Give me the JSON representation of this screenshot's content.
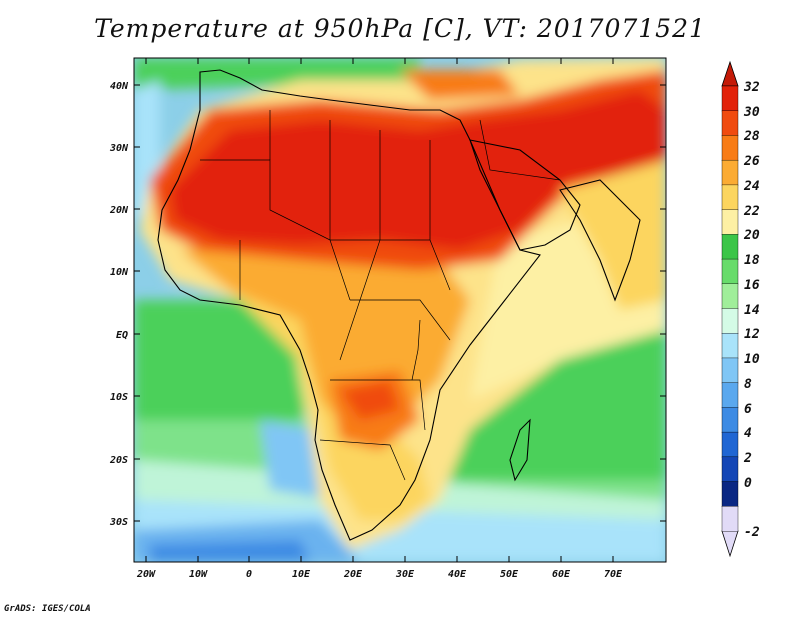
{
  "title": "Temperature at 950hPa [C], VT: 2017071521",
  "credit": "GrADS: IGES/COLA",
  "map": {
    "lat_labels": [
      "40N",
      "30N",
      "20N",
      "10N",
      "EQ",
      "10S",
      "20S",
      "30S"
    ],
    "lon_labels": [
      "20W",
      "10W",
      "0",
      "10E",
      "20E",
      "30E",
      "40E",
      "50E",
      "60E",
      "70E"
    ]
  },
  "colorbar": {
    "labels": [
      "32",
      "30",
      "28",
      "26",
      "24",
      "22",
      "20",
      "18",
      "16",
      "14",
      "12",
      "10",
      "8",
      "6",
      "4",
      "2",
      "0",
      "-2"
    ],
    "colors": [
      "#e2220a",
      "#f04b0f",
      "#f87c16",
      "#fbab33",
      "#fcd55f",
      "#fdf0a4",
      "#3bc548",
      "#68dc6b",
      "#a0ee9a",
      "#d4fbe6",
      "#a9e3fa",
      "#80c6f5",
      "#5aa8ee",
      "#3d8be4",
      "#2066d3",
      "#1446b6",
      "#0a2783",
      "#e1dbf7"
    ],
    "top_color": "#c41a08",
    "bottom_color": "#e1dbf7"
  }
}
